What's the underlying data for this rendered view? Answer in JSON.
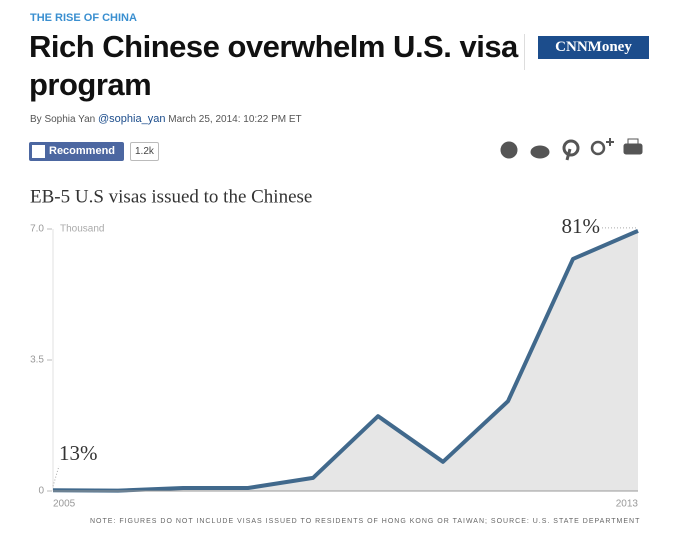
{
  "header": {
    "section": "THE RISE OF CHINA",
    "title": "Rich Chinese overwhelm U.S. visa program",
    "byline": "By Sophia Yan",
    "handle": "@sophia_yan",
    "date": "March 25, 2014: 10:22 PM ET",
    "logo": "CNNMoney",
    "recommend": "Recommend",
    "recommend_count": "1.2k"
  },
  "chart_data": {
    "type": "area",
    "title": "EB-5 U.S visas issued to the Chinese",
    "ylabel": "Thousand",
    "categories": [
      "2005",
      null,
      null,
      null,
      null,
      null,
      null,
      null,
      null,
      "2013"
    ],
    "values": [
      0.02,
      0.01,
      0.08,
      0.08,
      0.35,
      2.0,
      0.78,
      2.4,
      6.2,
      6.95
    ],
    "color": "#41698c",
    "fill": "#e6e6e6",
    "ylim": [
      0,
      7
    ],
    "yticks": [
      0,
      3.5,
      {
        "value": 7,
        "label": "7.0"
      }
    ],
    "annotations": [
      "13%",
      "81%"
    ],
    "note": "NOTE: FIGURES DO NOT INCLUDE VISAS ISSUED TO RESIDENTS OF HONG KONG OR TAIWAN; SOURCE: U.S. STATE DEPARTMENT"
  }
}
